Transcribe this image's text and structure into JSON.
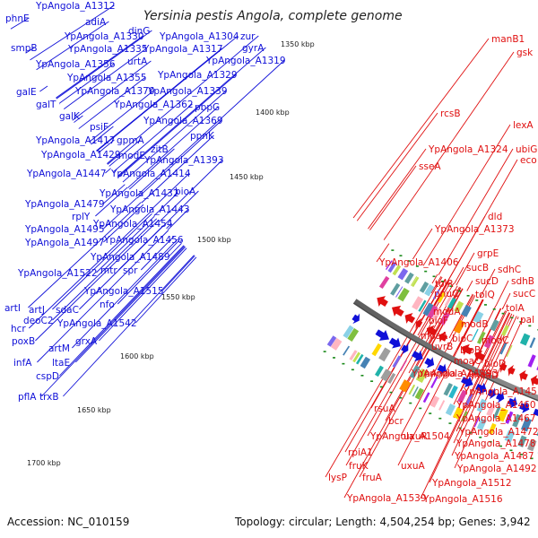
{
  "title": "Yersinia pestis Angola, complete genome",
  "accession": "Accession: NC_010159",
  "topology": "Topology: circular; Length: 4,504,254 bp; Genes: 3,942",
  "colors": {
    "forward": "#1010d8",
    "reverse": "#e01010",
    "backbone": "#909090",
    "tick": "#1a8a1a"
  },
  "kbp_labels": [
    "1350 kbp",
    "1400 kbp",
    "1450 kbp",
    "1500 kbp",
    "1550 kbp",
    "1600 kbp",
    "1650 kbp",
    "1700 kbp"
  ],
  "forward_genes": [
    "YpAngola_A1312",
    "phnE",
    "adiA",
    "dinG",
    "YpAngola_A1330",
    "YpAngola_A1304",
    "zur",
    "smpB",
    "YpAngola_A1335",
    "YpAngola_A1317",
    "gyrA",
    "YpAngola_A1356",
    "urtA",
    "YpAngola_A1319",
    "YpAngola_A1355",
    "YpAngola_A1329",
    "galE",
    "YpAngola_A1370",
    "YpAngola_A1339",
    "galT",
    "YpAngola_A1362",
    "pbpG",
    "galK",
    "psiF",
    "YpAngola_A1369",
    "YpAngola_A1417",
    "gpmA",
    "ppnK",
    "YpAngola_A1429",
    "modE",
    "zitB",
    "YpAngola_A1393",
    "YpAngola_A1447",
    "YpAngola_A1414",
    "YpAngola_A1432",
    "bioA",
    "YpAngola_A1479",
    "YpAngola_A1443",
    "rplY",
    "YpAngola_A1454",
    "YpAngola_A1495",
    "YpAngola_A1456",
    "YpAngola_A1497",
    "YpAngola_A1489",
    "mtr",
    "spr",
    "YpAngola_A1522",
    "YpAngola_A1515",
    "nfo",
    "deoC2",
    "artJ",
    "sdaC",
    "artI",
    "YpAngola_A1542",
    "hcr",
    "grxA",
    "poxB",
    "artM",
    "infA",
    "ltaE",
    "cspD",
    "pflA",
    "trxB"
  ],
  "reverse_genes": [
    "manB1",
    "gsk",
    "rcsB",
    "lexA",
    "ubiG",
    "YpAngola_A1324",
    "eco",
    "sseA",
    "dld",
    "YpAngola_A1373",
    "grpE",
    "YpAngola_A1406",
    "sucB",
    "sdhC",
    "sucD",
    "sdhB",
    "tolR",
    "sucC",
    "pnuC",
    "tolQ",
    "tolA",
    "pal",
    "modA",
    "bioF",
    "modB",
    "moaA",
    "bioC",
    "modC",
    "uvrB",
    "bioB",
    "moaC",
    "bioD",
    "YpAngola_A1493",
    "YpAngola_A1458",
    "moaD",
    "YpAngola_A1451",
    "rsuA",
    "YpAngola_A1460",
    "bcr",
    "YpAngola_A1467",
    "YpAngola_A1504",
    "YpAngola_A1472",
    "uxuR",
    "YpAngola_A1478",
    "rpiA1",
    "YpAngola_A1487",
    "fruK",
    "uxuA",
    "YpAngola_A1492",
    "fruA",
    "lysP",
    "YpAngola_A1512",
    "YpAngola_A1539",
    "YpAngola_A1516"
  ]
}
